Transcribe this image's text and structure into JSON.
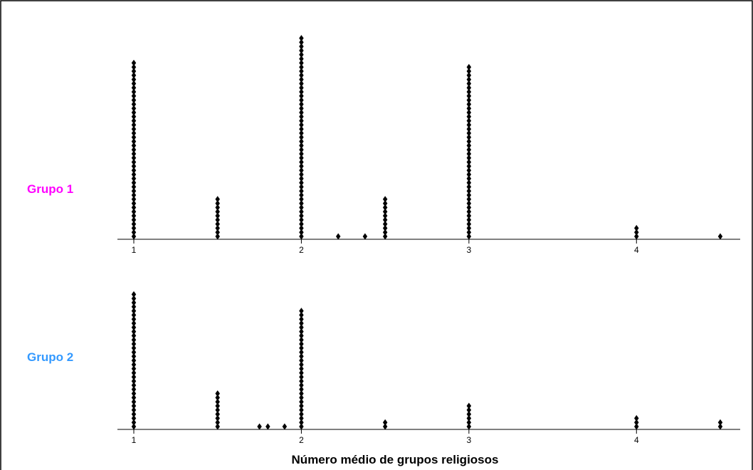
{
  "chart_data": {
    "type": "dotplot",
    "xlabel": "Número médio de grupos religiosos",
    "xticks": [
      1,
      2,
      3,
      4
    ],
    "xlim": [
      0.9,
      4.6
    ],
    "grid": false,
    "marker": "diamond",
    "groups": [
      {
        "name": "Grupo 1",
        "color": "#ff00ff",
        "dots": [
          {
            "x": 1.0,
            "count": 43
          },
          {
            "x": 1.5,
            "count": 10
          },
          {
            "x": 2.0,
            "count": 49
          },
          {
            "x": 2.22,
            "count": 1
          },
          {
            "x": 2.38,
            "count": 1
          },
          {
            "x": 2.5,
            "count": 10
          },
          {
            "x": 3.0,
            "count": 42
          },
          {
            "x": 4.0,
            "count": 3
          },
          {
            "x": 4.5,
            "count": 1
          }
        ]
      },
      {
        "name": "Grupo 2",
        "color": "#3399ff",
        "dots": [
          {
            "x": 1.0,
            "count": 33
          },
          {
            "x": 1.5,
            "count": 9
          },
          {
            "x": 1.75,
            "count": 1
          },
          {
            "x": 1.8,
            "count": 1
          },
          {
            "x": 1.9,
            "count": 1
          },
          {
            "x": 2.0,
            "count": 29
          },
          {
            "x": 2.5,
            "count": 2
          },
          {
            "x": 3.0,
            "count": 6
          },
          {
            "x": 4.0,
            "count": 3
          },
          {
            "x": 4.5,
            "count": 2
          }
        ]
      }
    ]
  }
}
